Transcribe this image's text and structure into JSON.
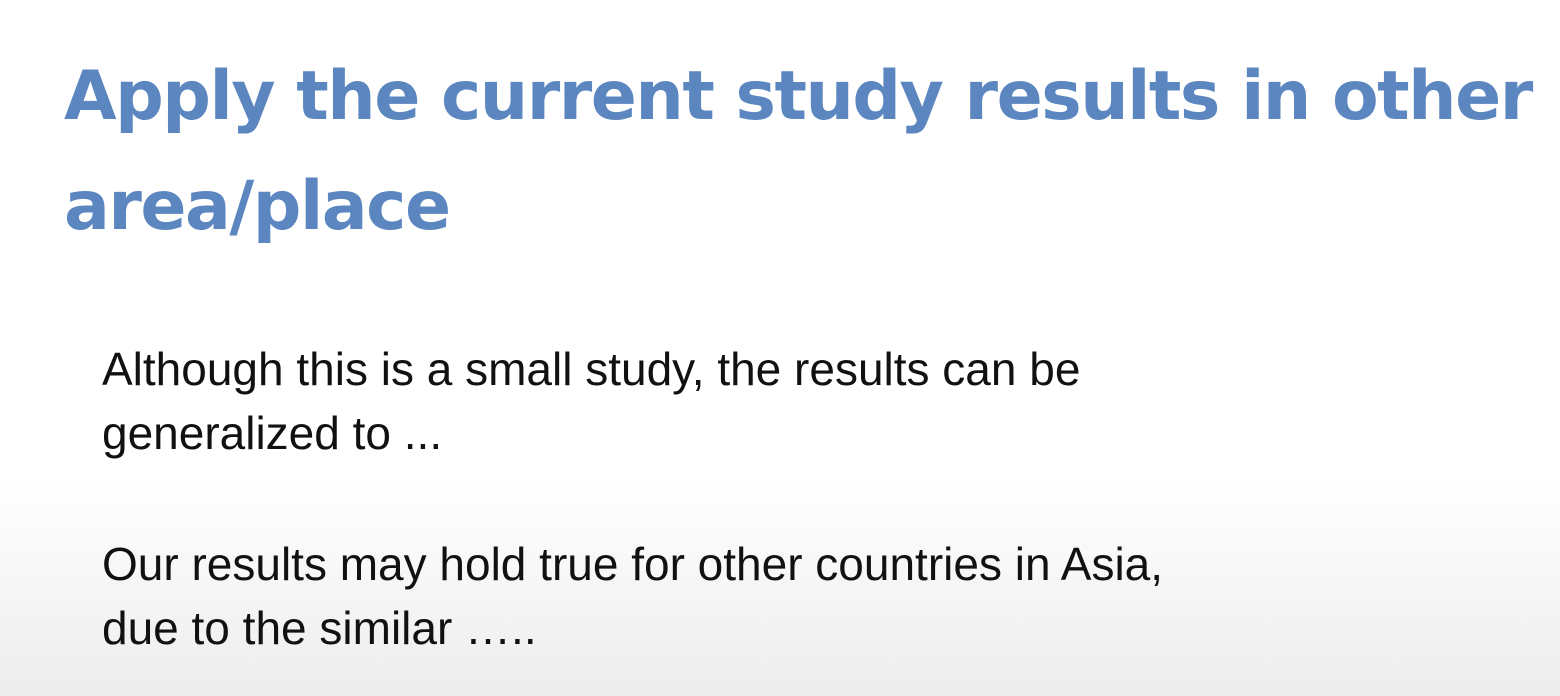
{
  "slide": {
    "title_line1": "Apply the current study results in other",
    "title_line2": "area/place",
    "paragraphs": [
      {
        "line1": "Although this is a small study, the results can be",
        "line2": "generalized to ..."
      },
      {
        "line1": "Our results may hold true for other countries in Asia,",
        "line2": "due to the similar ….."
      }
    ]
  },
  "colors": {
    "title": "#5b86c0",
    "body_text": "#111111",
    "background": "#ffffff"
  }
}
